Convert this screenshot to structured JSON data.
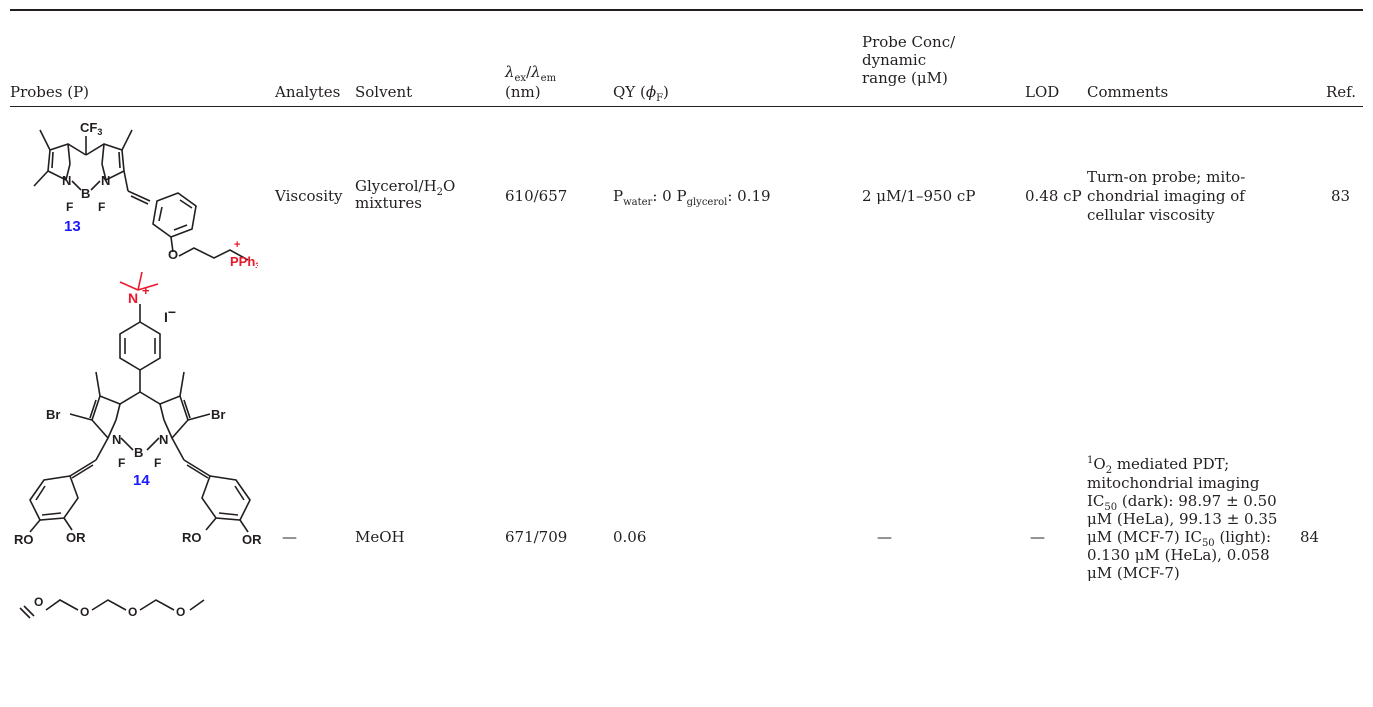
{
  "table": {
    "headers": {
      "probes": "Probes (P)",
      "analytes": "Analytes",
      "solvent": "Solvent",
      "lambda": "λex/λem",
      "lambda_sym": "λ",
      "lambda_ex": "ex",
      "lambda_sep": "/",
      "lambda_em": "em",
      "lambda_unit": "(nm)",
      "qy": "QY (ϕF)",
      "qy_pre": "QY (",
      "qy_sym": "ϕ",
      "qy_sub": "F",
      "qy_post": ")",
      "conc_line1": "Probe Conc/",
      "conc_line2": "dynamic",
      "conc_line3": "range (μM)",
      "lod": "LOD",
      "comments": "Comments",
      "ref": "Ref."
    },
    "rows": [
      {
        "compound_number": "13",
        "analytes": "Viscosity",
        "solvent_line1_pre": "Glycerol/H",
        "solvent_line1_sub": "2",
        "solvent_line1_post": "O",
        "solvent_line2": "mixtures",
        "lambda": "610/657",
        "qy_p1": "P",
        "qy_sub1": "water",
        "qy_mid": ": 0 P",
        "qy_sub2": "glycerol",
        "qy_post": ": 0.19",
        "conc": "2 μM/1–950 cP",
        "lod": "0.48 cP",
        "comment_line1": "Turn-on probe; mito-",
        "comment_line2": "chondrial imaging of",
        "comment_line3": "cellular viscosity",
        "ref": "83"
      },
      {
        "compound_number": "14",
        "analytes": "—",
        "solvent": "MeOH",
        "lambda": "671/709",
        "qy": "0.06",
        "conc": "—",
        "lod": "—",
        "comment_l1_sup": "1",
        "comment_l1_a": "O",
        "comment_l1_sub": "2",
        "comment_l1_b": " mediated PDT;",
        "comment_l2": "mitochondrial imaging",
        "comment_l3_a": "IC",
        "comment_l3_sub": "50",
        "comment_l3_b": " (dark): 98.97 ± 0.50",
        "comment_l4": "μM (HeLa), 99.13 ± 0.35",
        "comment_l5_a": "μM (MCF-7) IC",
        "comment_l5_sub": "50",
        "comment_l5_b": " (light):",
        "comment_l6": "0.130 μM (HeLa), 0.058",
        "comment_l7": "μM (MCF-7)",
        "ref": "84"
      }
    ]
  },
  "structure_labels": {
    "cf3": "CF3",
    "cf": "CF",
    "cf_sub": "3",
    "n": "N",
    "b": "B",
    "f": "F",
    "pph3": "PPh3",
    "pph": "PPh",
    "pph_sub": "3",
    "plus": "+",
    "o": "O",
    "br": "Br",
    "iodide": "I",
    "minus": "−",
    "ro": "RO",
    "or": "OR"
  },
  "colors": {
    "text": "#231f20",
    "compound_number": "#1a1aff",
    "highlight": "#e8192c"
  }
}
